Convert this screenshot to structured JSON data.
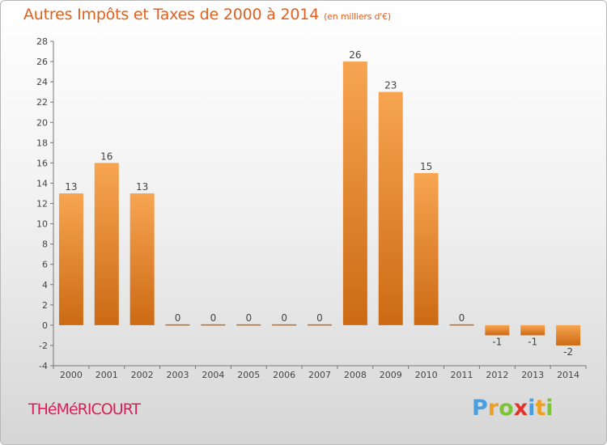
{
  "title": "Autres Impôts et Taxes de 2000 à 2014",
  "subtitle": "(en milliers d'€)",
  "commune": "THéMéRICOURT",
  "logo": {
    "letters": [
      "P",
      "r",
      "o",
      "x",
      "i",
      "t",
      "i"
    ]
  },
  "colors": {
    "bar_top": "#f7a552",
    "bar_bottom": "#cc6a14",
    "title": "#e0601e",
    "commune": "#d5205a"
  },
  "chart_data": {
    "type": "bar",
    "categories": [
      "2000",
      "2001",
      "2002",
      "2003",
      "2004",
      "2005",
      "2006",
      "2007",
      "2008",
      "2009",
      "2010",
      "2011",
      "2012",
      "2013",
      "2014"
    ],
    "values": [
      13,
      16,
      13,
      0,
      0,
      0,
      0,
      0,
      26,
      23,
      15,
      0,
      -1,
      -1,
      -2
    ],
    "data_labels": [
      "13",
      "16",
      "13",
      "0",
      "0",
      "0",
      "0",
      "0",
      "26",
      "23",
      "15",
      "0",
      "-1",
      "-1",
      "-2"
    ],
    "yticks": [
      "-4",
      "-2",
      "0",
      "2",
      "4",
      "6",
      "8",
      "10",
      "12",
      "14",
      "16",
      "18",
      "20",
      "22",
      "24",
      "26",
      "28"
    ],
    "ylim": [
      -4,
      28
    ],
    "grid": false,
    "legend": "none"
  }
}
